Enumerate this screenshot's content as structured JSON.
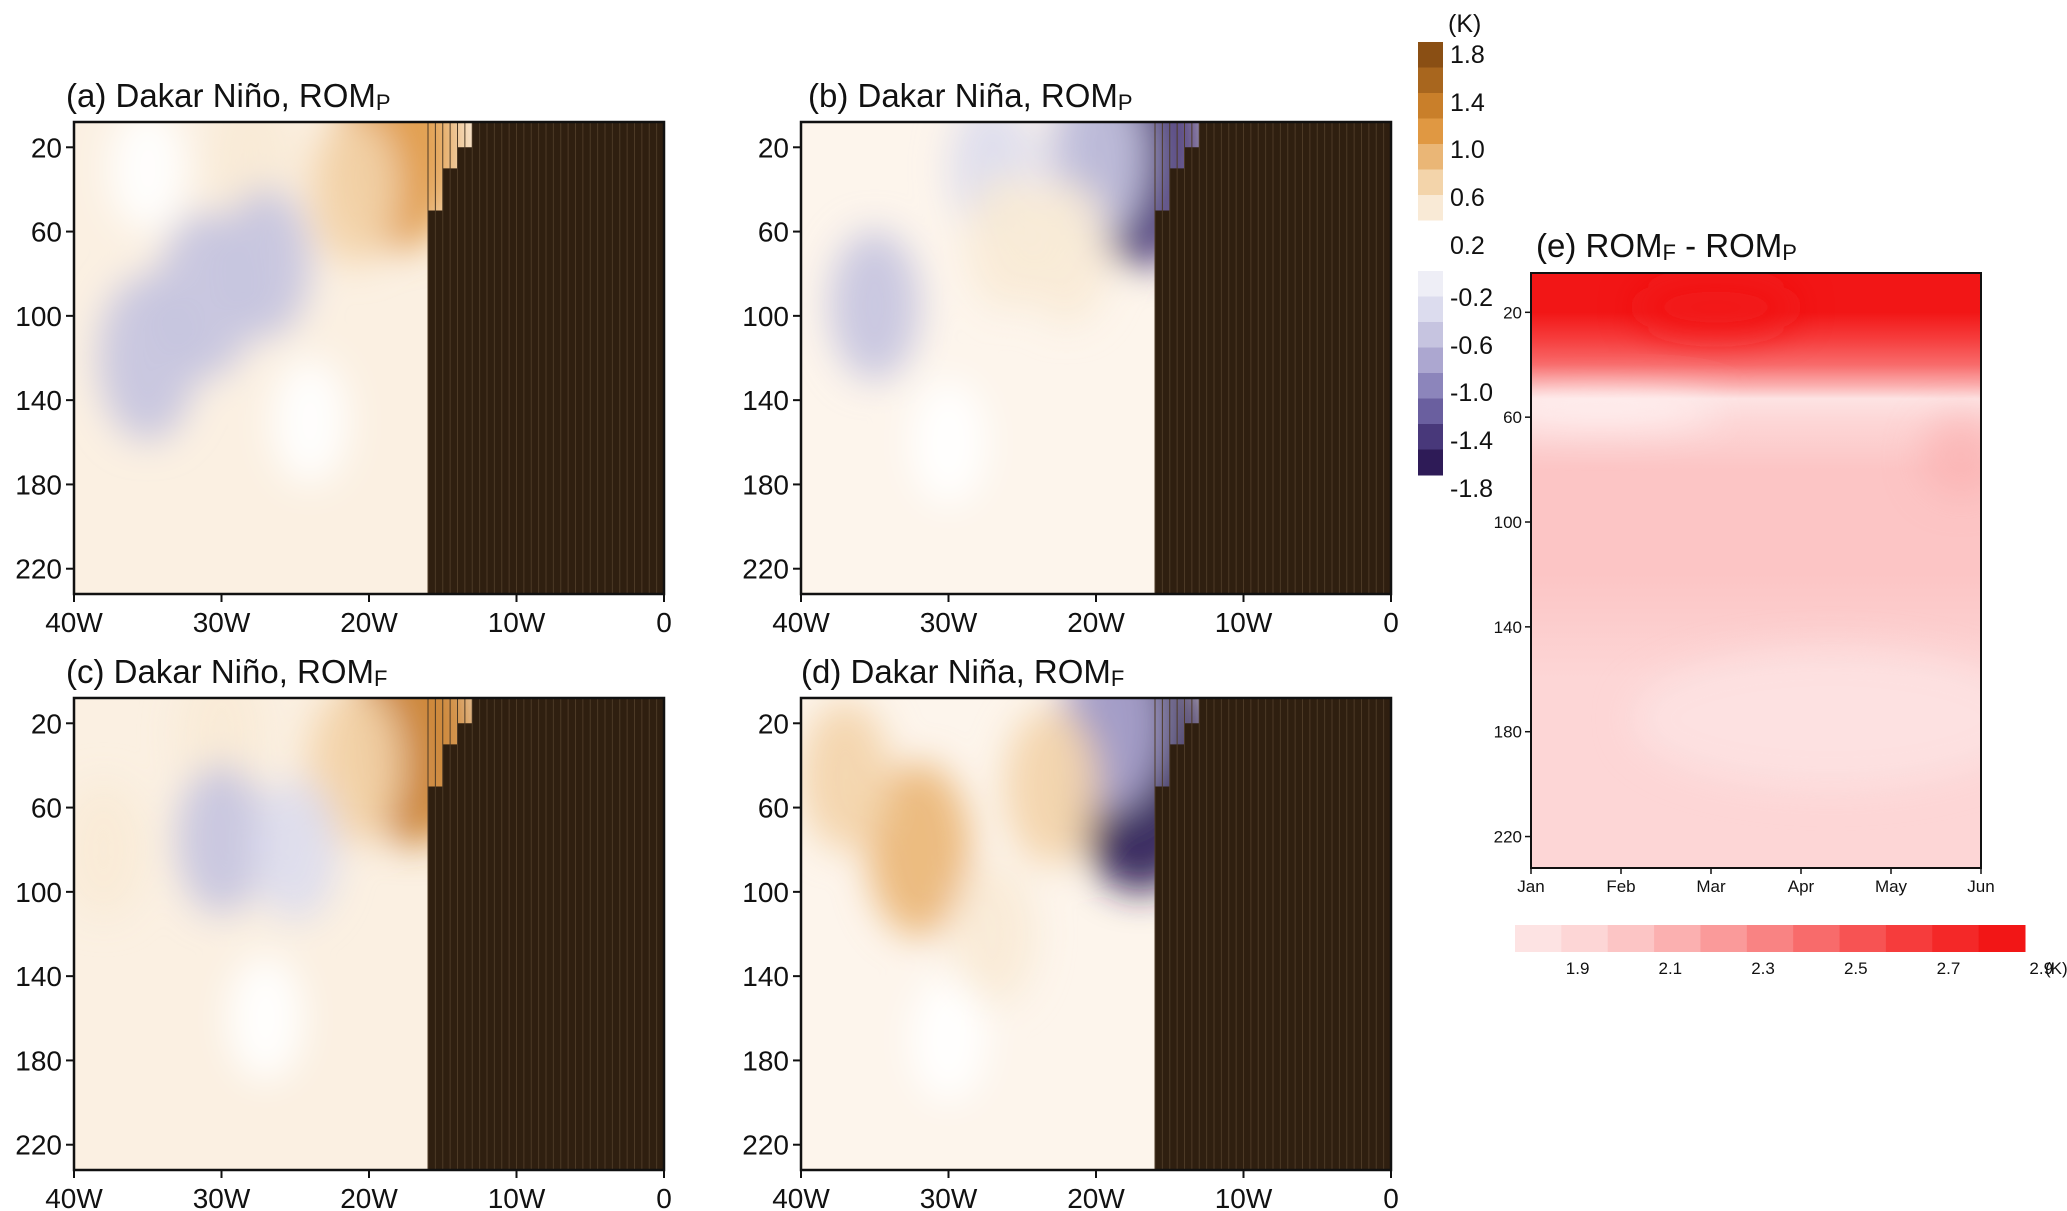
{
  "panels": [
    {
      "id": "a",
      "title": "(a) Dakar Niño, ROM",
      "subscript": "P"
    },
    {
      "id": "b",
      "title": "(b) Dakar Niña, ROM",
      "subscript": "P"
    },
    {
      "id": "c",
      "title": "(c) Dakar Niño, ROM",
      "subscript": "F"
    },
    {
      "id": "d",
      "title": "(d) Dakar Niña, ROM",
      "subscript": "F"
    }
  ],
  "panel_e": {
    "title_prefix": "(e) ROM",
    "sub1": "F",
    "title_mid": " - ROM",
    "sub2": "P"
  },
  "chart_data": [
    {
      "type": "heatmap",
      "panels": [
        "a",
        "b",
        "c",
        "d"
      ],
      "x_ticks": [
        "40W",
        "30W",
        "20W",
        "10W",
        "0"
      ],
      "x_range": [
        -40,
        0
      ],
      "y_ticks": [
        20,
        60,
        100,
        140,
        180,
        220
      ],
      "y_range": [
        232,
        8
      ],
      "land_boundary_lon": [
        -16,
        -16,
        -15,
        -15,
        -14,
        -14,
        -13,
        -13
      ],
      "land_boundary_depth": [
        232,
        50,
        50,
        30,
        30,
        20,
        20,
        8
      ],
      "colorbar": {
        "unit": "(K)",
        "labels": [
          "1.8",
          "1.4",
          "1.0",
          "0.6",
          "0.2",
          "-0.2",
          "-0.6",
          "-1.0",
          "-1.4",
          "-1.8"
        ],
        "colors": [
          "#8a4f14",
          "#a8661e",
          "#c97f2a",
          "#e09842",
          "#eab676",
          "#f3d4aa",
          "#f9ead6",
          "#ffffff",
          "#eeeef6",
          "#dcdcee",
          "#c6c4e0",
          "#aca7d0",
          "#8c85bb",
          "#6a5f9f",
          "#48387a",
          "#2e1b57"
        ]
      },
      "anomalies": {
        "a": [
          {
            "lon": -18,
            "depth": 20,
            "value": 1.2
          },
          {
            "lon": -21,
            "depth": 40,
            "value": 0.5
          },
          {
            "lon": -28,
            "depth": 25,
            "value": 0.4
          },
          {
            "lon": -35,
            "depth": 30,
            "value": 0.2
          },
          {
            "lon": -31,
            "depth": 90,
            "value": -0.7
          },
          {
            "lon": -35,
            "depth": 120,
            "value": -0.7
          },
          {
            "lon": -27,
            "depth": 75,
            "value": -0.5
          },
          {
            "lon": -24,
            "depth": 150,
            "value": 0.2
          }
        ],
        "b": [
          {
            "lon": -17,
            "depth": 20,
            "value": -1.6
          },
          {
            "lon": -20,
            "depth": 25,
            "value": -0.7
          },
          {
            "lon": -27,
            "depth": 30,
            "value": -0.4
          },
          {
            "lon": -35,
            "depth": 95,
            "value": -0.5
          },
          {
            "lon": -22,
            "depth": 70,
            "value": 0.4
          },
          {
            "lon": -26,
            "depth": 65,
            "value": 0.3
          },
          {
            "lon": -30,
            "depth": 160,
            "value": 0.2
          }
        ],
        "c": [
          {
            "lon": -17,
            "depth": 25,
            "value": 1.4
          },
          {
            "lon": -21,
            "depth": 40,
            "value": 0.6
          },
          {
            "lon": -30,
            "depth": 25,
            "value": 0.4
          },
          {
            "lon": -30,
            "depth": 75,
            "value": -0.5
          },
          {
            "lon": -25,
            "depth": 80,
            "value": -0.4
          },
          {
            "lon": -38,
            "depth": 80,
            "value": 0.3
          },
          {
            "lon": -27,
            "depth": 160,
            "value": 0.2
          }
        ],
        "d": [
          {
            "lon": -17,
            "depth": 40,
            "value": -1.8
          },
          {
            "lon": -19,
            "depth": 20,
            "value": -0.8
          },
          {
            "lon": -32,
            "depth": 80,
            "value": 0.8
          },
          {
            "lon": -23,
            "depth": 50,
            "value": 0.6
          },
          {
            "lon": -37,
            "depth": 45,
            "value": 0.5
          },
          {
            "lon": -27,
            "depth": 120,
            "value": 0.4
          },
          {
            "lon": -30,
            "depth": 170,
            "value": 0.2
          }
        ]
      }
    },
    {
      "type": "heatmap",
      "panel": "e",
      "x_ticks": [
        "Jan",
        "Feb",
        "Mar",
        "Apr",
        "May",
        "Jun"
      ],
      "y_ticks": [
        20,
        60,
        100,
        140,
        180,
        220
      ],
      "y_range": [
        232,
        5
      ],
      "colorbar": {
        "unit": "(K)",
        "labels": [
          "1.9",
          "2.1",
          "2.3",
          "2.5",
          "2.7",
          "2.9"
        ],
        "colors": [
          "#fde3e3",
          "#fdd6d6",
          "#fcc5c5",
          "#fbb0b0",
          "#fa9a9a",
          "#f98383",
          "#f86b6b",
          "#f75353",
          "#f63c3c",
          "#f42828",
          "#f21616"
        ]
      },
      "depth_profile": [
        {
          "depth": 8,
          "value": 2.95
        },
        {
          "depth": 20,
          "value": 2.9
        },
        {
          "depth": 30,
          "value": 2.7
        },
        {
          "depth": 40,
          "value": 2.5
        },
        {
          "depth": 48,
          "value": 2.2
        },
        {
          "depth": 53,
          "value": 1.9
        },
        {
          "depth": 62,
          "value": 2.0
        },
        {
          "depth": 80,
          "value": 2.1
        },
        {
          "depth": 120,
          "value": 2.1
        },
        {
          "depth": 160,
          "value": 1.95
        },
        {
          "depth": 220,
          "value": 2.0
        }
      ]
    }
  ]
}
